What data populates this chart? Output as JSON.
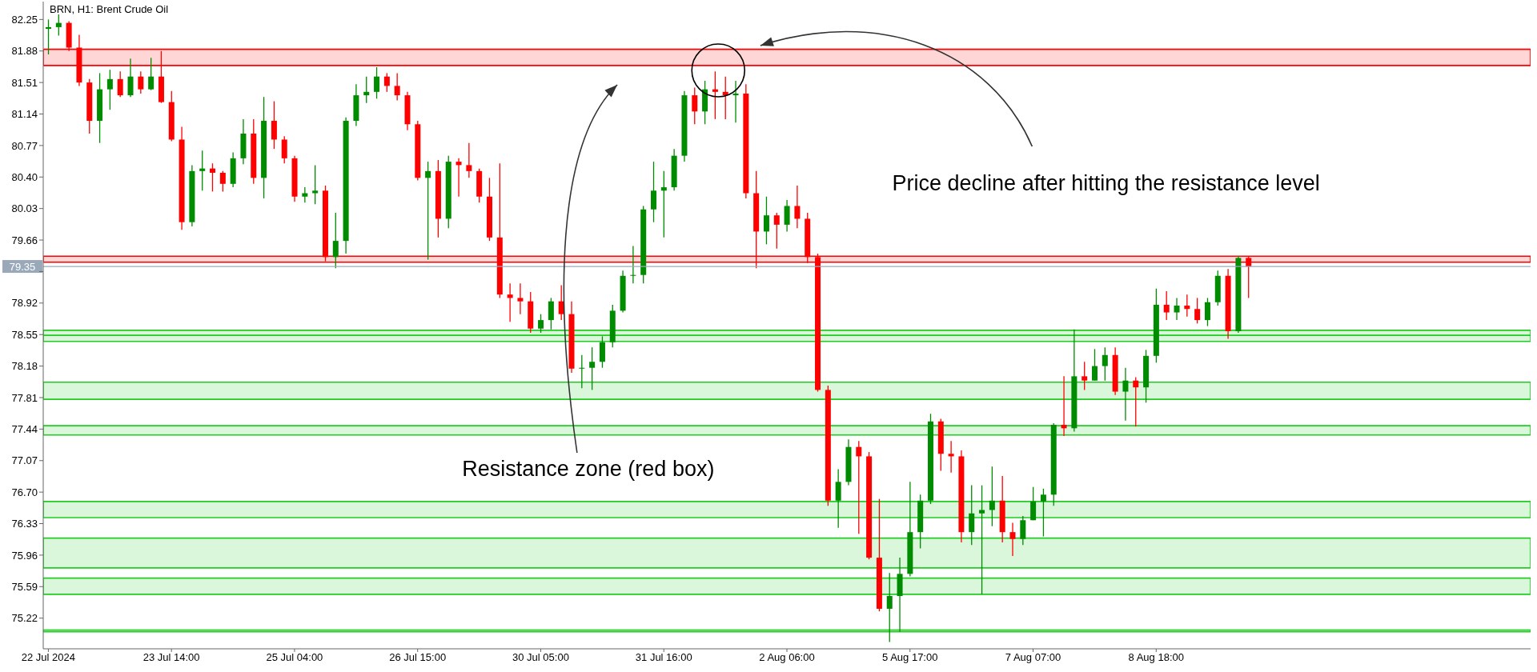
{
  "chart_data": {
    "type": "candlestick",
    "title": "BRN, H1: Brent Crude Oil",
    "categories": [
      "22 Jul 2024",
      null,
      null,
      null,
      null,
      null,
      null,
      null,
      null,
      null,
      null,
      null,
      "23 Jul 14:00",
      null,
      null,
      null,
      null,
      null,
      null,
      null,
      null,
      null,
      null,
      null,
      "25 Jul 04:00",
      null,
      null,
      null,
      null,
      null,
      null,
      null,
      null,
      null,
      null,
      null,
      "26 Jul 15:00",
      null,
      null,
      null,
      null,
      null,
      null,
      null,
      null,
      null,
      null,
      null,
      "30 Jul 05:00",
      null,
      null,
      null,
      null,
      null,
      null,
      null,
      null,
      null,
      null,
      null,
      "31 Jul 16:00",
      null,
      null,
      null,
      null,
      null,
      null,
      null,
      null,
      null,
      null,
      null,
      "2 Aug 06:00",
      null,
      null,
      null,
      null,
      null,
      null,
      null,
      null,
      null,
      null,
      null,
      "5 Aug 17:00",
      null,
      null,
      null,
      null,
      null,
      null,
      null,
      null,
      null,
      null,
      null,
      "7 Aug 07:00",
      null,
      null,
      null,
      null,
      null,
      null,
      null,
      null,
      null,
      null,
      null,
      "8 Aug 18:00",
      null,
      null,
      null,
      null,
      null,
      null,
      null,
      null,
      null
    ],
    "ohlc": [
      [
        82.14,
        82.25,
        81.84,
        82.16
      ],
      [
        82.16,
        82.31,
        82.06,
        82.21
      ],
      [
        82.21,
        82.23,
        81.88,
        81.92
      ],
      [
        81.92,
        82.07,
        81.47,
        81.51
      ],
      [
        81.51,
        81.55,
        80.91,
        81.06
      ],
      [
        81.06,
        81.62,
        80.8,
        81.43
      ],
      [
        81.43,
        81.66,
        81.19,
        81.55
      ],
      [
        81.55,
        81.64,
        81.34,
        81.36
      ],
      [
        81.36,
        81.79,
        81.34,
        81.58
      ],
      [
        81.58,
        81.64,
        81.38,
        81.43
      ],
      [
        81.43,
        81.8,
        81.42,
        81.58
      ],
      [
        81.58,
        81.88,
        81.27,
        81.28
      ],
      [
        81.28,
        81.41,
        80.82,
        80.84
      ],
      [
        80.84,
        80.99,
        79.78,
        79.87
      ],
      [
        79.87,
        80.54,
        79.82,
        80.47
      ],
      [
        80.47,
        80.71,
        80.24,
        80.5
      ],
      [
        80.5,
        80.56,
        80.23,
        80.45
      ],
      [
        80.45,
        80.47,
        80.23,
        80.32
      ],
      [
        80.32,
        80.69,
        80.28,
        80.62
      ],
      [
        80.62,
        81.08,
        80.55,
        80.91
      ],
      [
        80.91,
        81.08,
        80.32,
        80.39
      ],
      [
        80.39,
        81.34,
        80.15,
        81.06
      ],
      [
        81.06,
        81.29,
        80.73,
        80.84
      ],
      [
        80.84,
        80.88,
        80.56,
        80.62
      ],
      [
        80.62,
        80.65,
        80.11,
        80.17
      ],
      [
        80.17,
        80.28,
        80.1,
        80.21
      ],
      [
        80.21,
        80.54,
        80.08,
        80.24
      ],
      [
        80.24,
        80.3,
        79.41,
        79.46
      ],
      [
        79.46,
        79.98,
        79.33,
        79.65
      ],
      [
        79.65,
        81.1,
        79.5,
        81.06
      ],
      [
        81.06,
        81.49,
        81.0,
        81.36
      ],
      [
        81.36,
        81.58,
        81.27,
        81.4
      ],
      [
        81.4,
        81.69,
        81.32,
        81.58
      ],
      [
        81.58,
        81.62,
        81.4,
        81.47
      ],
      [
        81.47,
        81.62,
        81.3,
        81.36
      ],
      [
        81.36,
        81.4,
        80.95,
        81.02
      ],
      [
        81.02,
        81.06,
        80.36,
        80.39
      ],
      [
        80.39,
        80.58,
        79.43,
        80.47
      ],
      [
        80.47,
        80.6,
        79.69,
        79.91
      ],
      [
        79.91,
        80.65,
        79.8,
        80.58
      ],
      [
        80.58,
        80.62,
        80.17,
        80.54
      ],
      [
        80.54,
        80.8,
        80.39,
        80.47
      ],
      [
        80.47,
        80.5,
        80.1,
        80.17
      ],
      [
        80.17,
        80.39,
        79.65,
        79.69
      ],
      [
        79.69,
        80.56,
        78.98,
        79.02
      ],
      [
        79.02,
        79.15,
        78.7,
        78.98
      ],
      [
        78.98,
        79.15,
        78.79,
        78.94
      ],
      [
        78.94,
        79.05,
        78.57,
        78.62
      ],
      [
        78.62,
        78.79,
        78.57,
        78.72
      ],
      [
        78.72,
        78.98,
        78.61,
        78.94
      ],
      [
        78.94,
        79.13,
        78.72,
        78.79
      ],
      [
        78.79,
        78.94,
        78.1,
        78.15
      ],
      [
        78.15,
        78.31,
        77.92,
        78.16
      ],
      [
        78.16,
        78.4,
        77.9,
        78.23
      ],
      [
        78.23,
        78.53,
        78.16,
        78.46
      ],
      [
        78.46,
        78.9,
        78.4,
        78.83
      ],
      [
        78.83,
        79.3,
        78.81,
        79.24
      ],
      [
        79.24,
        79.59,
        79.15,
        79.25
      ],
      [
        79.25,
        80.06,
        79.15,
        80.02
      ],
      [
        80.02,
        80.58,
        79.87,
        80.24
      ],
      [
        80.24,
        80.47,
        79.69,
        80.28
      ],
      [
        80.28,
        80.73,
        80.24,
        80.65
      ],
      [
        80.65,
        81.41,
        80.58,
        81.36
      ],
      [
        81.36,
        81.45,
        81.02,
        81.17
      ],
      [
        81.17,
        81.53,
        81.02,
        81.43
      ],
      [
        81.43,
        81.64,
        81.08,
        81.4
      ],
      [
        81.4,
        81.58,
        81.08,
        81.36
      ],
      [
        81.36,
        81.53,
        81.04,
        81.38
      ],
      [
        81.38,
        81.49,
        80.15,
        80.21
      ],
      [
        80.21,
        80.47,
        79.33,
        79.76
      ],
      [
        79.76,
        80.17,
        79.61,
        79.95
      ],
      [
        79.95,
        79.98,
        79.56,
        79.84
      ],
      [
        79.84,
        80.13,
        79.76,
        80.06
      ],
      [
        80.06,
        80.3,
        79.8,
        79.91
      ],
      [
        79.91,
        79.98,
        79.39,
        79.46
      ],
      [
        79.46,
        79.5,
        77.88,
        77.9
      ],
      [
        77.9,
        77.95,
        76.54,
        76.6
      ],
      [
        76.6,
        76.97,
        76.28,
        76.82
      ],
      [
        76.82,
        77.32,
        76.78,
        77.23
      ],
      [
        77.23,
        77.3,
        76.21,
        77.12
      ],
      [
        77.12,
        77.17,
        75.91,
        75.93
      ],
      [
        75.93,
        76.62,
        75.3,
        75.33
      ],
      [
        75.33,
        75.75,
        74.94,
        75.48
      ],
      [
        75.48,
        75.93,
        75.06,
        75.74
      ],
      [
        75.74,
        76.82,
        75.71,
        76.23
      ],
      [
        76.23,
        76.67,
        76.04,
        76.6
      ],
      [
        76.6,
        77.62,
        76.56,
        77.53
      ],
      [
        77.53,
        77.56,
        76.95,
        77.15
      ],
      [
        77.15,
        77.3,
        76.93,
        77.12
      ],
      [
        77.12,
        77.19,
        76.11,
        76.23
      ],
      [
        76.23,
        76.78,
        76.08,
        76.45
      ],
      [
        76.45,
        76.78,
        75.5,
        76.49
      ],
      [
        76.49,
        77.0,
        76.3,
        76.6
      ],
      [
        76.6,
        76.89,
        76.11,
        76.23
      ],
      [
        76.23,
        76.34,
        75.95,
        76.15
      ],
      [
        76.15,
        76.42,
        76.08,
        76.37
      ],
      [
        76.37,
        76.76,
        76.37,
        76.59
      ],
      [
        76.59,
        76.74,
        76.18,
        76.67
      ],
      [
        76.67,
        77.51,
        76.54,
        77.49
      ],
      [
        77.49,
        78.06,
        77.36,
        77.45
      ],
      [
        77.45,
        78.61,
        77.41,
        78.06
      ],
      [
        78.06,
        78.23,
        77.9,
        78.01
      ],
      [
        78.01,
        78.38,
        78.01,
        78.18
      ],
      [
        78.18,
        78.4,
        78.01,
        78.31
      ],
      [
        78.31,
        78.4,
        77.84,
        77.88
      ],
      [
        77.88,
        78.16,
        77.54,
        78.01
      ],
      [
        78.01,
        78.05,
        77.47,
        77.93
      ],
      [
        77.93,
        78.37,
        77.75,
        78.3
      ],
      [
        78.3,
        79.09,
        78.22,
        78.9
      ],
      [
        78.9,
        79.06,
        78.72,
        78.81
      ],
      [
        78.81,
        78.98,
        78.72,
        78.89
      ],
      [
        78.89,
        79.02,
        78.76,
        78.85
      ],
      [
        78.85,
        78.98,
        78.68,
        78.72
      ],
      [
        78.72,
        78.98,
        78.65,
        78.93
      ],
      [
        78.93,
        79.3,
        78.89,
        79.24
      ],
      [
        79.24,
        79.32,
        78.5,
        78.59
      ],
      [
        78.59,
        79.47,
        78.57,
        79.45
      ],
      [
        79.45,
        79.47,
        78.98,
        79.35
      ]
    ],
    "colors": [
      "#008c00",
      "#008c00",
      "#ff0000",
      "#ff0000",
      "#ff0000",
      "#008c00",
      "#008c00",
      "#ff0000",
      "#008c00",
      "#ff0000",
      "#008c00",
      "#ff0000",
      "#ff0000",
      "#ff0000",
      "#008c00",
      "#008c00",
      "#ff0000",
      "#ff0000",
      "#008c00",
      "#008c00",
      "#ff0000",
      "#008c00",
      "#ff0000",
      "#ff0000",
      "#ff0000",
      "#008c00",
      "#008c00",
      "#ff0000",
      "#008c00",
      "#008c00",
      "#008c00",
      "#008c00",
      "#008c00",
      "#ff0000",
      "#ff0000",
      "#ff0000",
      "#ff0000",
      "#008c00",
      "#ff0000",
      "#008c00",
      "#ff0000",
      "#ff0000",
      "#ff0000",
      "#ff0000",
      "#ff0000",
      "#ff0000",
      "#ff0000",
      "#ff0000",
      "#008c00",
      "#008c00",
      "#ff0000",
      "#ff0000",
      "#008c00",
      "#008c00",
      "#008c00",
      "#008c00",
      "#008c00",
      "#008c00",
      "#008c00",
      "#008c00",
      "#008c00",
      "#008c00",
      "#008c00",
      "#ff0000",
      "#008c00",
      "#ff0000",
      "#ff0000",
      "#008c00",
      "#ff0000",
      "#ff0000",
      "#008c00",
      "#ff0000",
      "#008c00",
      "#ff0000",
      "#ff0000",
      "#ff0000",
      "#ff0000",
      "#008c00",
      "#008c00",
      "#ff0000",
      "#ff0000",
      "#ff0000",
      "#008c00",
      "#008c00",
      "#008c00",
      "#008c00",
      "#008c00",
      "#ff0000",
      "#ff0000",
      "#ff0000",
      "#008c00",
      "#008c00",
      "#008c00",
      "#ff0000",
      "#ff0000",
      "#008c00",
      "#008c00",
      "#008c00",
      "#008c00",
      "#ff0000",
      "#008c00",
      "#ff0000",
      "#008c00",
      "#008c00",
      "#ff0000",
      "#008c00",
      "#ff0000",
      "#008c00",
      "#008c00",
      "#ff0000",
      "#008c00",
      "#ff0000",
      "#ff0000",
      "#008c00",
      "#008c00",
      "#ff0000",
      "#008c00",
      "#ff0000"
    ],
    "ylim": [
      74.86,
      82.46
    ],
    "yticks": [
      75.22,
      75.59,
      75.96,
      76.33,
      {
        "value": 76.7,
        "label": "76.70"
      },
      77.07,
      77.44,
      77.81,
      78.18,
      78.55,
      78.92,
      {
        "value": 79.29,
        "label": null
      },
      79.66,
      80.03,
      {
        "value": 80.4,
        "label": "80.40"
      },
      80.77,
      81.14,
      81.51,
      81.88,
      82.25
    ],
    "ref_lines": [
      {
        "axis": "y",
        "value": 79.35,
        "label": "79.35",
        "color": "#9aa9ba"
      }
    ],
    "bands": [
      {
        "axis": "y",
        "from": 81.71,
        "to": 81.9,
        "color": "#ff0000"
      },
      {
        "axis": "y",
        "from": 79.4,
        "to": 79.47,
        "color": "#ff0000"
      },
      {
        "axis": "y",
        "from": 78.54,
        "to": 78.6,
        "color": "#22cc22"
      },
      {
        "axis": "y",
        "from": 78.47,
        "to": 78.54,
        "color": "#22cc22"
      },
      {
        "axis": "y",
        "from": 77.79,
        "to": 77.99,
        "color": "#22cc22"
      },
      {
        "axis": "y",
        "from": 77.37,
        "to": 77.48,
        "color": "#22cc22"
      },
      {
        "axis": "y",
        "from": 76.4,
        "to": 76.59,
        "color": "#22cc22"
      },
      {
        "axis": "y",
        "from": 75.81,
        "to": 76.16,
        "color": "#22cc22"
      },
      {
        "axis": "y",
        "from": 75.5,
        "to": 75.69,
        "color": "#22cc22"
      },
      {
        "axis": "y",
        "from": 75.06,
        "to": 75.08,
        "color": "#22cc22"
      }
    ],
    "annotations": [
      "Price decline after hitting the resistance level",
      "Resistance zone (red box)"
    ]
  }
}
